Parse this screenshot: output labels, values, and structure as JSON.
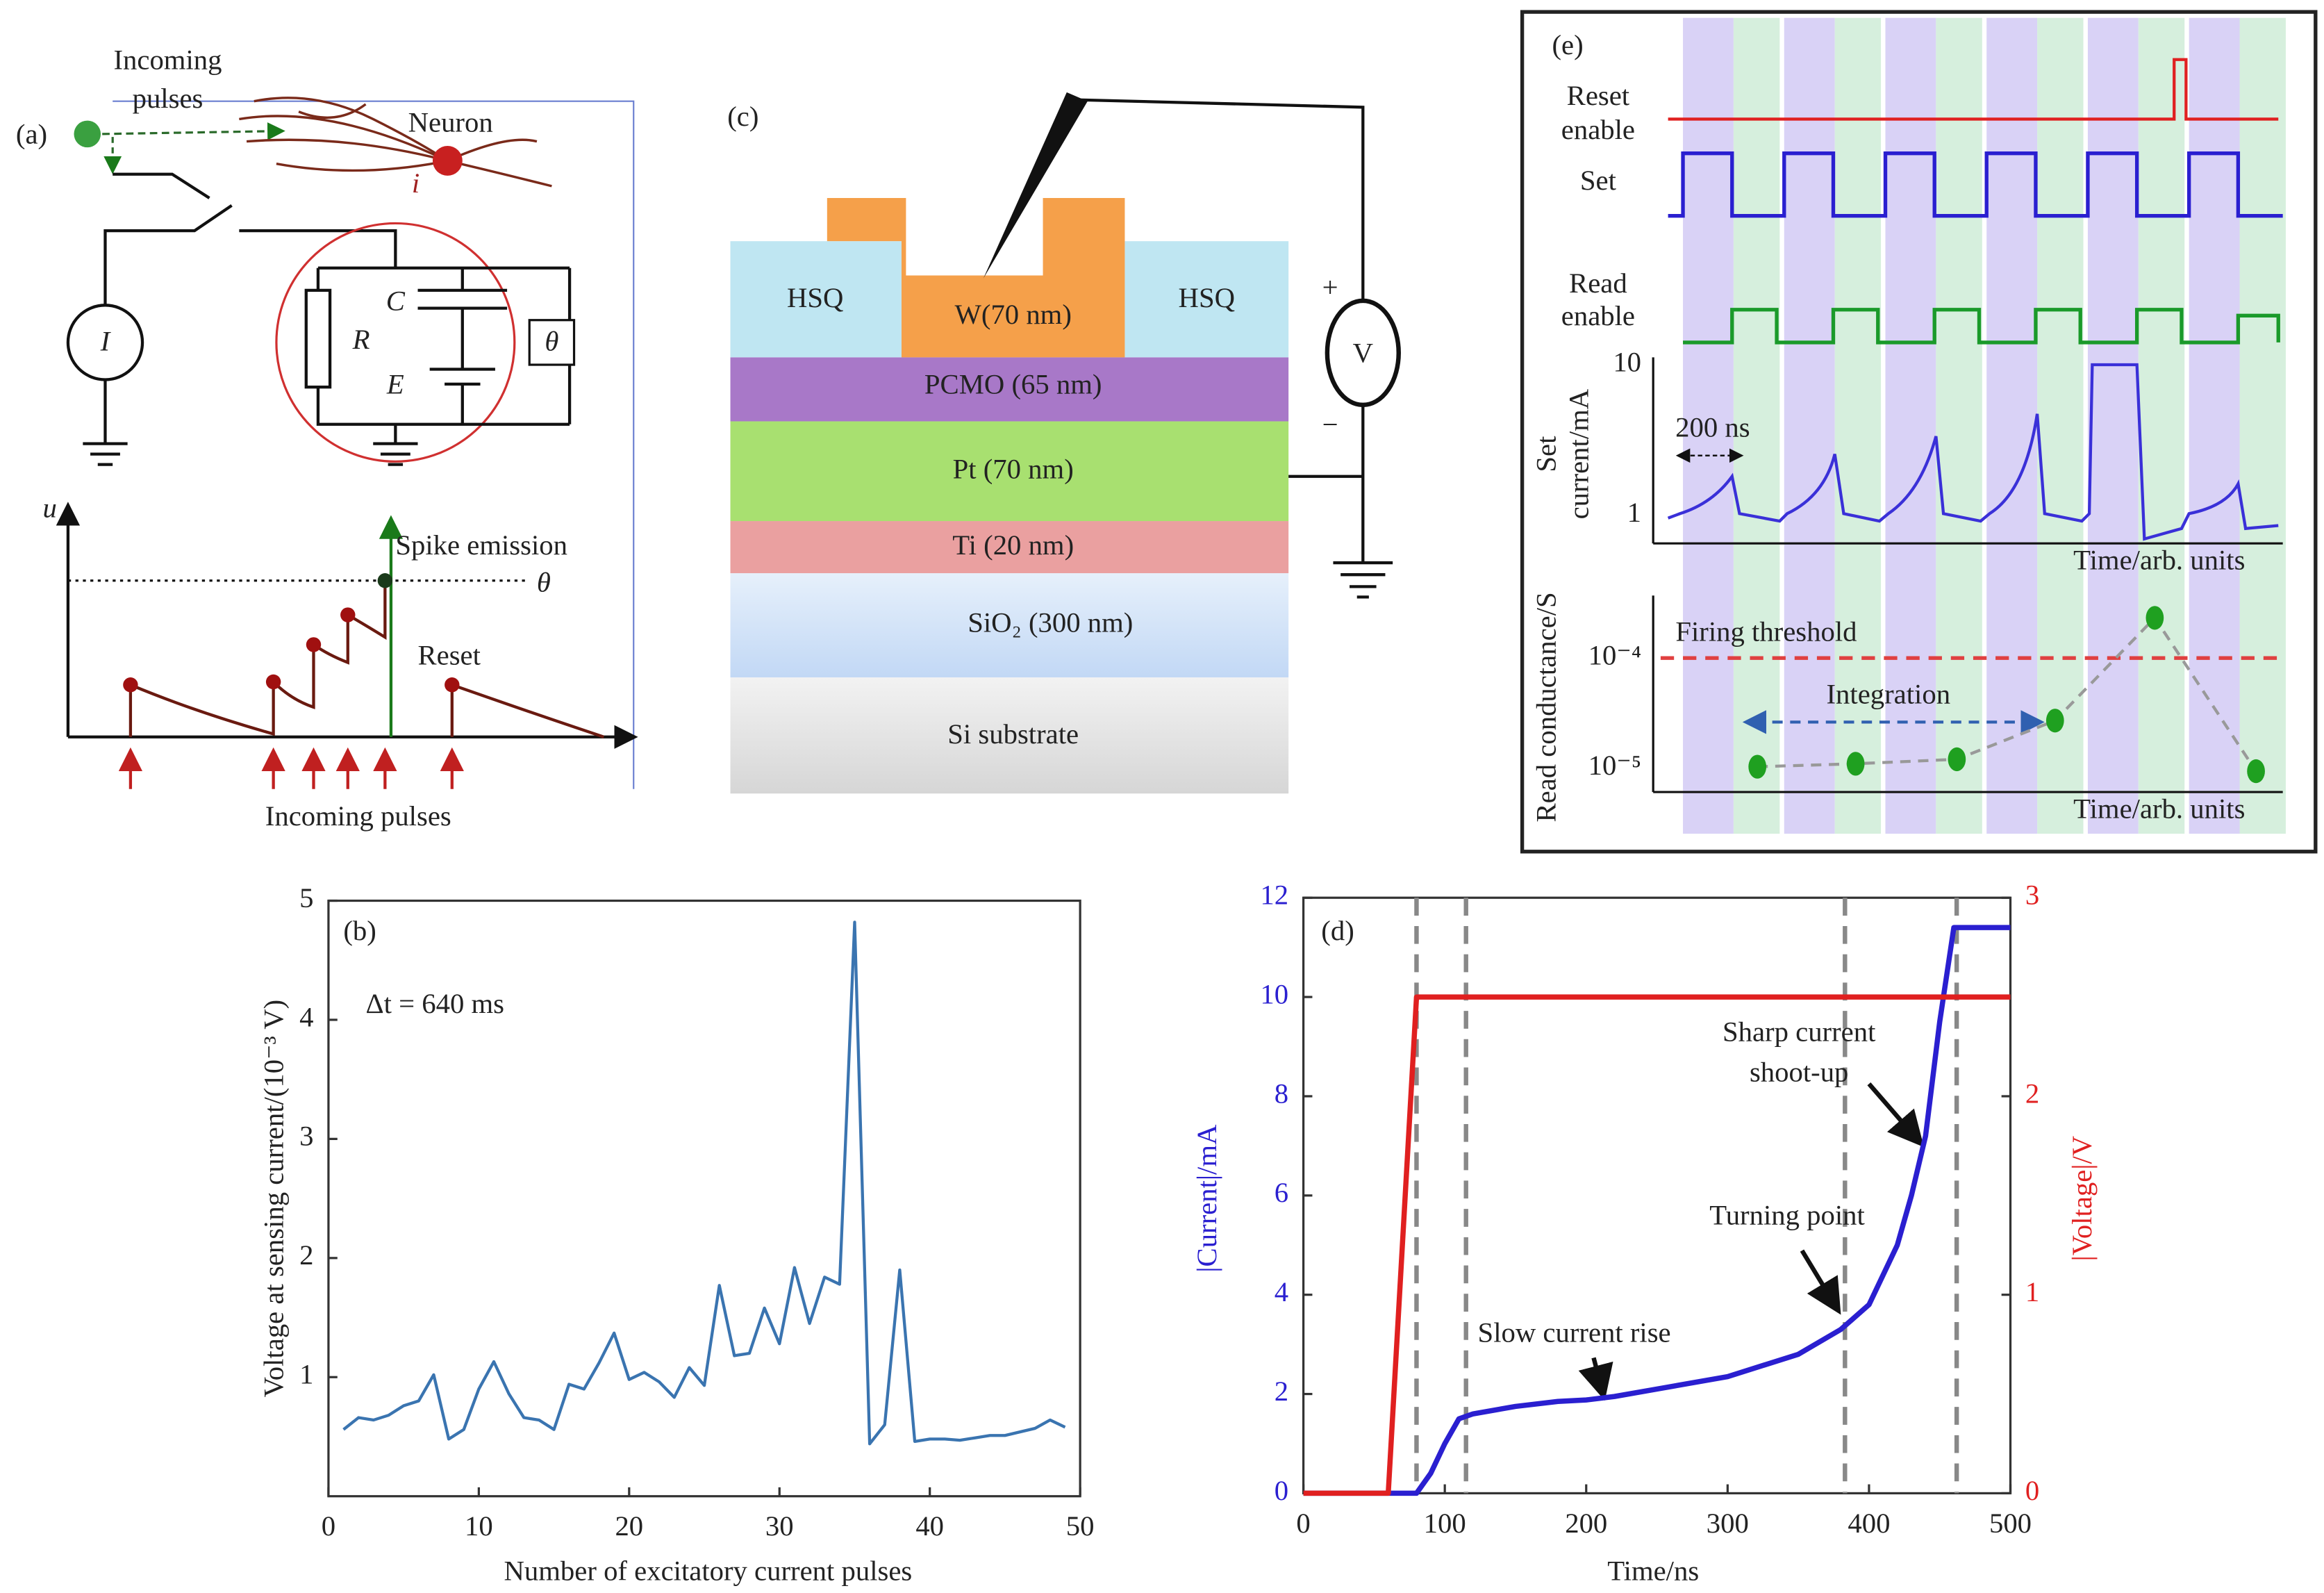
{
  "chart_data": [
    {
      "type": "line",
      "panel_label": "(b)",
      "annotation": "Δt = 640 ms",
      "xlabel": "Number of excitatory current pulses",
      "ylabel": "Voltage at sensing current/(10⁻³ V)",
      "xlim": [
        0,
        50
      ],
      "xticks": [
        0,
        10,
        20,
        30,
        40,
        50
      ],
      "ylim": [
        0,
        5
      ],
      "yticks": [
        1,
        2,
        3,
        4,
        5
      ],
      "x": [
        1,
        2,
        3,
        4,
        5,
        6,
        7,
        8,
        9,
        10,
        11,
        12,
        13,
        14,
        15,
        16,
        17,
        18,
        19,
        20,
        21,
        22,
        23,
        24,
        25,
        26,
        27,
        28,
        29,
        30,
        31,
        32,
        33,
        34,
        35,
        36,
        37,
        38,
        39,
        40,
        41,
        42,
        43,
        44,
        45,
        46,
        47,
        48,
        49
      ],
      "series": [
        {
          "color": "#3a74b0",
          "values": [
            0.56,
            0.66,
            0.64,
            0.68,
            0.76,
            0.8,
            1.02,
            0.48,
            0.56,
            0.9,
            1.13,
            0.86,
            0.66,
            0.64,
            0.56,
            0.94,
            0.9,
            1.12,
            1.37,
            0.98,
            1.04,
            0.96,
            0.83,
            1.08,
            0.93,
            1.77,
            1.18,
            1.2,
            1.58,
            1.28,
            1.92,
            1.45,
            1.84,
            1.78,
            4.82,
            0.44,
            0.6,
            1.9,
            0.46,
            0.48,
            0.48,
            0.47,
            0.49,
            0.51,
            0.51,
            0.54,
            0.57,
            0.64,
            0.58
          ]
        }
      ]
    },
    {
      "type": "line",
      "panel_label": "(d)",
      "xlabel": "Time/ns",
      "ylabel": "|Current|/mA",
      "y2label": "|Voltage|/V",
      "xlim": [
        0,
        500
      ],
      "xticks": [
        0,
        100,
        200,
        300,
        400,
        500
      ],
      "ylim": [
        0,
        12
      ],
      "yticks": [
        0,
        2,
        4,
        6,
        8,
        10,
        12
      ],
      "y2lim": [
        0,
        3
      ],
      "y2ticks": [
        0,
        1,
        2,
        3
      ],
      "ytick_color": "#2a1fd0",
      "y2tick_color": "#e02020",
      "markers_x": [
        80,
        115,
        383,
        462
      ],
      "annotations": [
        [
          "Slow current rise"
        ],
        [
          "Turning point"
        ],
        [
          "Sharp current",
          "shoot-up"
        ]
      ],
      "series": [
        {
          "color": "#2a1fd0",
          "x": [
            0,
            60,
            80,
            90,
            100,
            110,
            120,
            150,
            180,
            200,
            220,
            250,
            300,
            350,
            380,
            400,
            420,
            430,
            440,
            450,
            460,
            500
          ],
          "values": [
            0,
            0,
            0,
            0.4,
            1.0,
            1.5,
            1.6,
            1.75,
            1.85,
            1.88,
            1.95,
            2.1,
            2.35,
            2.8,
            3.3,
            3.8,
            5,
            6,
            7.2,
            9.5,
            11.4,
            11.4
          ]
        },
        {
          "color": "#e02020",
          "axis": "y2",
          "x": [
            0,
            60,
            80,
            500
          ],
          "values": [
            0,
            0,
            2.5,
            2.5
          ]
        }
      ]
    }
  ],
  "panel_a": {
    "label": "(a)",
    "incoming_top": [
      "Incoming",
      "pulses"
    ],
    "neuron": "Neuron",
    "neuron_index": "i",
    "source": "I",
    "resistor": "R",
    "capacitor": "C",
    "battery": "E",
    "threshold_box": "θ",
    "u_axis": "u",
    "spike": "Spike emission",
    "threshold": "θ",
    "reset": "Reset",
    "incoming_bottom": "Incoming pulses"
  },
  "panel_c": {
    "label": "(c)",
    "hsq_left": "HSQ",
    "w": "W(70 nm)",
    "hsq_right": "HSQ",
    "pcmo": "PCMO (65 nm)",
    "pt": "Pt (70 nm)",
    "ti": "Ti (20 nm)",
    "sio2": "SiO₂ (300 nm)",
    "si": "Si substrate",
    "plus": "+",
    "meter": "V",
    "minus": "−"
  },
  "panel_e": {
    "label": "(e)",
    "reset": [
      "Reset",
      "enable"
    ],
    "set": "Set",
    "read": [
      "Read",
      "enable"
    ],
    "current_label": [
      "Set",
      "current/mA"
    ],
    "current_top": "10",
    "current_bottom": "1",
    "width": "200 ns",
    "time1": "Time/arb. units",
    "conductance_label": "Read conductance/S",
    "threshold": "Firing threshold",
    "integration": "Integration",
    "cond_top": "10⁻⁴",
    "cond_bottom": "10⁻⁵",
    "time2": "Time/arb. units"
  }
}
